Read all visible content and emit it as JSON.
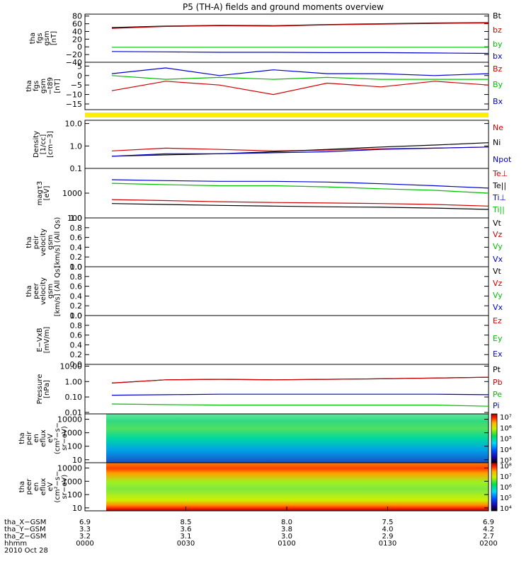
{
  "title": "P5 (TH-A) fields and ground moments overview",
  "panels": [
    {
      "id": "fgs_gsm",
      "ylabel_lines": [
        "tha",
        "fgs",
        "gsm",
        "[nT]"
      ],
      "scale": "linear",
      "ticks": [
        [
          "80",
          80
        ],
        [
          "60",
          60
        ],
        [
          "40",
          40
        ],
        [
          "20",
          20
        ],
        [
          "0",
          0
        ],
        [
          "−20",
          -20
        ],
        [
          "−40",
          -40
        ]
      ],
      "ylim": [
        -40,
        85
      ],
      "legend": [
        {
          "text": "Bt",
          "color": "#000000"
        },
        {
          "text": "bz",
          "color": "#d00000"
        },
        {
          "text": "by",
          "color": "#00c000"
        },
        {
          "text": "bx",
          "color": "#0000d0"
        }
      ]
    },
    {
      "id": "fgs_gsm_minus_t89",
      "ylabel_lines": [
        "tha",
        "fgs",
        "gsm",
        "−t89",
        "[nT]"
      ],
      "scale": "linear",
      "ticks": [
        [
          "5",
          5
        ],
        [
          "0",
          0
        ],
        [
          "−5",
          -5
        ],
        [
          "−10",
          -10
        ],
        [
          "−15",
          -15
        ]
      ],
      "ylim": [
        -18,
        7
      ],
      "legend": [
        {
          "text": "Bz",
          "color": "#d00000"
        },
        {
          "text": "By",
          "color": "#00c000"
        },
        {
          "text": "Bx",
          "color": "#0000d0"
        }
      ]
    },
    {
      "id": "density",
      "ylabel_lines": [
        "Density",
        "[1/cc]",
        "[cm−3]"
      ],
      "scale": "log",
      "ticks": [
        [
          "10.0",
          10
        ],
        [
          "1.0",
          1
        ],
        [
          "0.1",
          0.1
        ]
      ],
      "ylim": [
        0.1,
        14
      ],
      "legend": [
        {
          "text": "Ne",
          "color": "#d00000"
        },
        {
          "text": "Ni",
          "color": "#000000"
        },
        {
          "text": "Npot",
          "color": "#0000d0"
        }
      ]
    },
    {
      "id": "temperature",
      "ylabel_lines": [
        "magτ3",
        "[eV]"
      ],
      "scale": "log",
      "ticks": [
        [
          "1000",
          1000
        ],
        [
          "100",
          100
        ]
      ],
      "ylim": [
        100,
        10000
      ],
      "legend": [
        {
          "text": "Te⊥",
          "color": "#d00000"
        },
        {
          "text": "Te||",
          "color": "#000000"
        },
        {
          "text": "Ti⊥",
          "color": "#0000d0"
        },
        {
          "text": "Ti||",
          "color": "#00c000"
        }
      ]
    },
    {
      "id": "peir_velocity",
      "ylabel_lines": [
        "tha",
        "peir",
        "velocity",
        "gsm",
        "[km/s] (All Qs)"
      ],
      "scale": "linear",
      "ticks": [
        [
          "1.0",
          1.0
        ],
        [
          "0.8",
          0.8
        ],
        [
          "0.6",
          0.6
        ],
        [
          "0.4",
          0.4
        ],
        [
          "0.2",
          0.2
        ],
        [
          "0.0",
          0.0
        ]
      ],
      "ylim": [
        0,
        1
      ],
      "legend": [
        {
          "text": "Vt",
          "color": "#000000"
        },
        {
          "text": "Vz",
          "color": "#d00000"
        },
        {
          "text": "Vy",
          "color": "#00c000"
        },
        {
          "text": "Vx",
          "color": "#0000d0"
        }
      ]
    },
    {
      "id": "peer_velocity",
      "ylabel_lines": [
        "tha",
        "peer",
        "velocity",
        "gsm",
        "[km/s] (All Qs)"
      ],
      "scale": "linear",
      "ticks": [
        [
          "1.0",
          1.0
        ],
        [
          "0.8",
          0.8
        ],
        [
          "0.6",
          0.6
        ],
        [
          "0.4",
          0.4
        ],
        [
          "0.2",
          0.2
        ],
        [
          "0.0",
          0.0
        ]
      ],
      "ylim": [
        0,
        1
      ],
      "legend": [
        {
          "text": "Vt",
          "color": "#000000"
        },
        {
          "text": "Vz",
          "color": "#d00000"
        },
        {
          "text": "Vy",
          "color": "#00c000"
        },
        {
          "text": "Vx",
          "color": "#0000d0"
        }
      ]
    },
    {
      "id": "e_vxb",
      "ylabel_lines": [
        "E−VxB",
        "[mV/m]"
      ],
      "scale": "linear",
      "ticks": [
        [
          "1.0",
          1.0
        ],
        [
          "0.8",
          0.8
        ],
        [
          "0.6",
          0.6
        ],
        [
          "0.4",
          0.4
        ],
        [
          "0.2",
          0.2
        ],
        [
          "0.0",
          0.0
        ]
      ],
      "ylim": [
        0,
        1
      ],
      "legend": [
        {
          "text": "Ez",
          "color": "#d00000"
        },
        {
          "text": "Ey",
          "color": "#00c000"
        },
        {
          "text": "Ex",
          "color": "#0000d0"
        }
      ]
    },
    {
      "id": "pressure",
      "ylabel_lines": [
        "Pressure",
        "[nPa]"
      ],
      "scale": "log",
      "ticks": [
        [
          "10.00",
          10
        ],
        [
          "1.00",
          1
        ],
        [
          "0.10",
          0.1
        ],
        [
          "0.01",
          0.01
        ]
      ],
      "ylim": [
        0.008,
        13
      ],
      "legend": [
        {
          "text": "Pt",
          "color": "#000000"
        },
        {
          "text": "Pb",
          "color": "#d00000"
        },
        {
          "text": "Pe",
          "color": "#00c000"
        },
        {
          "text": "Pi",
          "color": "#0000d0"
        }
      ]
    },
    {
      "id": "peir_en_eflux",
      "ylabel_lines": [
        "tha",
        "peir",
        "en",
        "eflux",
        "eV",
        "(cm²−s−",
        "sr−eV)"
      ],
      "scale": "log",
      "ticks": [
        [
          "10000",
          10000
        ],
        [
          "1000",
          1000
        ],
        [
          "100",
          100
        ],
        [
          "10",
          10
        ]
      ],
      "ylim": [
        6,
        25000
      ],
      "colorbar": [
        [
          "10⁷",
          7
        ],
        [
          "10⁶",
          6
        ],
        [
          "10⁵",
          5
        ],
        [
          "10⁴",
          4
        ],
        [
          "10³",
          3
        ]
      ]
    },
    {
      "id": "peer_en_eflux",
      "ylabel_lines": [
        "tha",
        "peer",
        "en",
        "eflux",
        "eV",
        "(cm²−s−",
        "sr−eV)"
      ],
      "scale": "log",
      "ticks": [
        [
          "10000",
          10000
        ],
        [
          "1000",
          1000
        ],
        [
          "100",
          100
        ],
        [
          "10",
          10
        ]
      ],
      "ylim": [
        6,
        25000
      ],
      "colorbar": [
        [
          "10⁸",
          8
        ],
        [
          "10⁷",
          7
        ],
        [
          "10⁶",
          6
        ],
        [
          "10⁵",
          5
        ],
        [
          "10⁴",
          4
        ]
      ]
    }
  ],
  "x_axis": {
    "rows": [
      {
        "label": "tha_X−GSM",
        "values": [
          "6.9",
          "8.5",
          "8.0",
          "7.5",
          "6.9"
        ]
      },
      {
        "label": "tha_Y−GSM",
        "values": [
          "3.3",
          "3.6",
          "3.8",
          "4.0",
          "4.2"
        ]
      },
      {
        "label": "tha_Z−GSM",
        "values": [
          "3.2",
          "3.1",
          "3.0",
          "2.9",
          "2.7"
        ]
      },
      {
        "label": "hhmm",
        "values": [
          "0000",
          "0030",
          "0100",
          "0130",
          "0200"
        ]
      }
    ],
    "date": "2010 Oct 28",
    "tick_minutes": [
      0,
      30,
      60,
      90,
      120
    ]
  },
  "chart_data": {
    "type": "line",
    "title": "P5 (TH-A) fields and ground moments overview",
    "x_range_minutes": [
      0,
      120
    ],
    "data_start_minute": 8,
    "series": [
      {
        "panel": "fgs_gsm",
        "name": "Bt",
        "values": [
          50,
          54,
          56,
          55,
          58,
          60,
          62,
          63
        ]
      },
      {
        "panel": "fgs_gsm",
        "name": "bz",
        "values": [
          48,
          53,
          55,
          54,
          57,
          59,
          61,
          62
        ]
      },
      {
        "panel": "fgs_gsm",
        "name": "by",
        "values": [
          -1,
          -1,
          -1,
          -1,
          -1,
          -1,
          -1,
          -1
        ]
      },
      {
        "panel": "fgs_gsm",
        "name": "bx",
        "values": [
          -12,
          -13,
          -14,
          -14,
          -15,
          -15,
          -16,
          -17
        ]
      },
      {
        "panel": "fgs_gsm_minus_t89",
        "name": "Bz",
        "values": [
          -8,
          -3,
          -5,
          -10,
          -4,
          -6,
          -3,
          -5
        ]
      },
      {
        "panel": "fgs_gsm_minus_t89",
        "name": "By",
        "values": [
          0,
          -2,
          -1,
          -2,
          -1,
          -2,
          -2,
          -2
        ]
      },
      {
        "panel": "fgs_gsm_minus_t89",
        "name": "Bx",
        "values": [
          1,
          4,
          0,
          3,
          1,
          1,
          0,
          1
        ]
      },
      {
        "panel": "density",
        "name": "Ne",
        "values": [
          0.6,
          0.8,
          0.7,
          0.6,
          0.65,
          0.75,
          0.8,
          0.9
        ]
      },
      {
        "panel": "density",
        "name": "Ni",
        "values": [
          0.35,
          0.4,
          0.45,
          0.55,
          0.7,
          0.9,
          1.1,
          1.4
        ]
      },
      {
        "panel": "density",
        "name": "Npot",
        "values": [
          0.35,
          0.45,
          0.45,
          0.5,
          0.55,
          0.7,
          0.8,
          0.9
        ]
      },
      {
        "panel": "temperature",
        "name": "Ti⊥",
        "values": [
          3500,
          3200,
          3000,
          3000,
          2800,
          2400,
          2000,
          1600
        ]
      },
      {
        "panel": "temperature",
        "name": "Ti||",
        "values": [
          2500,
          2200,
          2000,
          2000,
          1800,
          1500,
          1300,
          1000
        ]
      },
      {
        "panel": "temperature",
        "name": "Te⊥",
        "values": [
          550,
          500,
          450,
          420,
          400,
          380,
          350,
          300
        ]
      },
      {
        "panel": "temperature",
        "name": "Te||",
        "values": [
          380,
          350,
          320,
          300,
          280,
          270,
          250,
          220
        ]
      },
      {
        "panel": "pressure",
        "name": "Pt",
        "values": [
          0.8,
          1.3,
          1.4,
          1.3,
          1.4,
          1.5,
          1.7,
          1.9
        ]
      },
      {
        "panel": "pressure",
        "name": "Pb",
        "values": [
          0.8,
          1.3,
          1.4,
          1.3,
          1.4,
          1.5,
          1.7,
          1.9
        ]
      },
      {
        "panel": "pressure",
        "name": "Pe",
        "values": [
          0.035,
          0.032,
          0.03,
          0.03,
          0.03,
          0.03,
          0.03,
          0.025
        ]
      },
      {
        "panel": "pressure",
        "name": "Pi",
        "values": [
          0.13,
          0.14,
          0.15,
          0.15,
          0.15,
          0.15,
          0.15,
          0.14
        ]
      }
    ]
  },
  "colors": {
    "background": "#ffffff",
    "axis": "#000000",
    "red": "#d00000",
    "green": "#00c000",
    "blue": "#0000d0",
    "black": "#000000",
    "yellow_bar": "#ffee00"
  }
}
